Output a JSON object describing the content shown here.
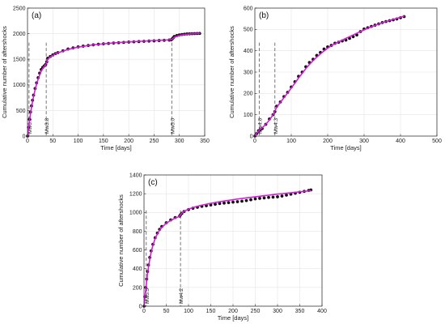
{
  "chart_data": [
    {
      "type": "line",
      "panel": "(a)",
      "xlabel": "Time [days]",
      "ylabel": "Cumulative number of aftershocks",
      "xlim": [
        0,
        350
      ],
      "ylim": [
        0,
        2500
      ],
      "xticks": [
        "0",
        "50",
        "100",
        "150",
        "200",
        "250",
        "300",
        "350"
      ],
      "yticks": [
        "0",
        "500",
        "1000",
        "1500",
        "2000",
        "2500"
      ],
      "grid": true,
      "colors": {
        "observed": "#111111",
        "model": "#d81bd8",
        "marker": "#666666"
      },
      "annotations": [
        {
          "text": "Mw6.0",
          "x": 3
        },
        {
          "text": "Mw3.8",
          "x": 37
        },
        {
          "text": "Mw5.0",
          "x": 285
        }
      ],
      "series": [
        {
          "role": "observed",
          "style": "dots",
          "x": [
            0,
            2,
            4,
            6,
            8,
            10,
            12,
            15,
            18,
            21,
            24,
            27,
            30,
            33,
            36,
            38,
            40,
            45,
            50,
            55,
            60,
            70,
            80,
            90,
            100,
            110,
            120,
            130,
            140,
            150,
            160,
            170,
            180,
            190,
            200,
            210,
            220,
            230,
            240,
            250,
            260,
            270,
            280,
            284,
            286,
            288,
            290,
            295,
            300,
            305,
            310,
            315,
            320,
            325,
            330,
            335,
            340
          ],
          "y": [
            0,
            170,
            330,
            470,
            590,
            700,
            800,
            930,
            1040,
            1140,
            1230,
            1300,
            1340,
            1370,
            1400,
            1450,
            1520,
            1555,
            1585,
            1610,
            1630,
            1665,
            1700,
            1722,
            1742,
            1757,
            1770,
            1782,
            1793,
            1802,
            1810,
            1817,
            1824,
            1830,
            1836,
            1841,
            1846,
            1851,
            1856,
            1860,
            1866,
            1871,
            1876,
            1880,
            1900,
            1925,
            1945,
            1963,
            1975,
            1983,
            1990,
            1995,
            1998,
            2000,
            2002,
            2004,
            2006
          ]
        },
        {
          "role": "model",
          "style": "line",
          "x": [
            0,
            2,
            4,
            6,
            8,
            10,
            12,
            15,
            18,
            21,
            24,
            27,
            30,
            33,
            36,
            38,
            40,
            45,
            50,
            55,
            60,
            70,
            80,
            90,
            100,
            110,
            120,
            130,
            140,
            150,
            160,
            170,
            180,
            190,
            200,
            210,
            220,
            230,
            240,
            250,
            260,
            270,
            280,
            284,
            286,
            288,
            290,
            295,
            300,
            305,
            310,
            315,
            320,
            325,
            330,
            335,
            340
          ],
          "y": [
            0,
            150,
            300,
            440,
            565,
            675,
            775,
            905,
            1015,
            1110,
            1195,
            1265,
            1320,
            1360,
            1395,
            1440,
            1500,
            1545,
            1578,
            1605,
            1625,
            1660,
            1692,
            1716,
            1737,
            1754,
            1768,
            1781,
            1792,
            1802,
            1811,
            1819,
            1826,
            1833,
            1839,
            1845,
            1850,
            1855,
            1860,
            1865,
            1870,
            1875,
            1880,
            1884,
            1898,
            1915,
            1930,
            1950,
            1965,
            1975,
            1983,
            1989,
            1994,
            1998,
            2001,
            2004,
            2007
          ]
        }
      ]
    },
    {
      "type": "line",
      "panel": "(b)",
      "xlabel": "Time [days]",
      "ylabel": "Cumulative number of aftershocks",
      "xlim": [
        0,
        500
      ],
      "ylim": [
        0,
        600
      ],
      "xticks": [
        "0",
        "100",
        "200",
        "300",
        "400",
        "500"
      ],
      "yticks": [
        "0",
        "100",
        "200",
        "300",
        "400",
        "500",
        "600"
      ],
      "grid": true,
      "colors": {
        "observed": "#111111",
        "model": "#d81bd8",
        "marker": "#666666"
      },
      "annotations": [
        {
          "text": "Mw4.6",
          "x": 12
        },
        {
          "text": "Mw4.3",
          "x": 55
        }
      ],
      "series": [
        {
          "role": "observed",
          "style": "dots",
          "x": [
            0,
            5,
            10,
            15,
            20,
            30,
            40,
            50,
            55,
            60,
            70,
            80,
            90,
            100,
            110,
            120,
            130,
            140,
            150,
            160,
            170,
            180,
            190,
            200,
            210,
            220,
            230,
            240,
            250,
            260,
            270,
            280,
            290,
            300,
            310,
            320,
            330,
            340,
            350,
            360,
            370,
            380,
            390,
            400,
            410
          ],
          "y": [
            0,
            12,
            25,
            30,
            35,
            55,
            80,
            100,
            115,
            140,
            160,
            185,
            205,
            230,
            255,
            280,
            300,
            325,
            345,
            360,
            378,
            392,
            408,
            418,
            425,
            435,
            440,
            446,
            450,
            458,
            466,
            474,
            490,
            502,
            508,
            514,
            520,
            526,
            532,
            537,
            541,
            545,
            549,
            555,
            560
          ]
        },
        {
          "role": "model",
          "style": "line",
          "x": [
            0,
            5,
            10,
            15,
            20,
            30,
            40,
            50,
            55,
            60,
            70,
            80,
            90,
            100,
            110,
            120,
            130,
            140,
            150,
            160,
            170,
            180,
            190,
            200,
            210,
            220,
            230,
            240,
            250,
            260,
            270,
            280,
            290,
            300,
            310,
            320,
            330,
            340,
            350,
            360,
            370,
            380,
            390,
            400,
            410
          ],
          "y": [
            0,
            14,
            24,
            32,
            38,
            55,
            75,
            100,
            117,
            135,
            158,
            180,
            202,
            225,
            248,
            272,
            294,
            316,
            336,
            354,
            370,
            385,
            399,
            412,
            423,
            433,
            442,
            450,
            458,
            466,
            474,
            482,
            490,
            498,
            505,
            512,
            519,
            525,
            531,
            537,
            542,
            547,
            552,
            557,
            562
          ]
        }
      ]
    },
    {
      "type": "line",
      "panel": "(c)",
      "xlabel": "Time [days]",
      "ylabel": "Cumulative number of aftershocks",
      "xlim": [
        0,
        400
      ],
      "ylim": [
        0,
        1400
      ],
      "xticks": [
        "0",
        "50",
        "100",
        "150",
        "200",
        "250",
        "300",
        "350",
        "400"
      ],
      "yticks": [
        "0",
        "200",
        "400",
        "600",
        "800",
        "1000",
        "1200",
        "1400"
      ],
      "grid": true,
      "colors": {
        "observed": "#111111",
        "model": "#d81bd8",
        "marker": "#666666"
      },
      "annotations": [
        {
          "text": "Mw5.5",
          "x": 5
        },
        {
          "text": "Mw4.2",
          "x": 82
        }
      ],
      "series": [
        {
          "role": "observed",
          "style": "dots",
          "x": [
            0,
            2,
            4,
            6,
            8,
            10,
            13,
            16,
            20,
            25,
            30,
            35,
            40,
            50,
            60,
            70,
            80,
            82,
            85,
            90,
            100,
            110,
            120,
            130,
            140,
            150,
            160,
            170,
            180,
            190,
            200,
            210,
            220,
            230,
            240,
            250,
            260,
            270,
            280,
            290,
            300,
            310,
            320,
            330,
            340,
            350,
            360,
            370,
            375
          ],
          "y": [
            0,
            100,
            200,
            290,
            370,
            440,
            520,
            590,
            660,
            730,
            780,
            820,
            850,
            890,
            920,
            945,
            960,
            975,
            990,
            1010,
            1030,
            1045,
            1055,
            1065,
            1072,
            1080,
            1088,
            1095,
            1100,
            1105,
            1110,
            1115,
            1120,
            1127,
            1135,
            1145,
            1150,
            1155,
            1160,
            1163,
            1167,
            1175,
            1185,
            1195,
            1205,
            1215,
            1225,
            1235,
            1240
          ]
        },
        {
          "role": "model",
          "style": "line",
          "x": [
            0,
            2,
            4,
            6,
            8,
            10,
            13,
            16,
            20,
            25,
            30,
            35,
            40,
            50,
            60,
            70,
            80,
            82,
            85,
            90,
            100,
            110,
            120,
            130,
            140,
            150,
            160,
            170,
            180,
            190,
            200,
            210,
            220,
            230,
            240,
            250,
            260,
            270,
            280,
            290,
            300,
            310,
            320,
            330,
            340,
            350,
            360,
            370,
            375
          ],
          "y": [
            0,
            90,
            180,
            265,
            345,
            415,
            500,
            575,
            650,
            720,
            770,
            810,
            840,
            885,
            915,
            940,
            958,
            975,
            992,
            1012,
            1035,
            1052,
            1066,
            1078,
            1088,
            1097,
            1106,
            1114,
            1122,
            1129,
            1136,
            1143,
            1149,
            1155,
            1161,
            1167,
            1173,
            1179,
            1184,
            1190,
            1195,
            1200,
            1205,
            1210,
            1215,
            1220,
            1225,
            1230,
            1233
          ]
        }
      ]
    }
  ]
}
